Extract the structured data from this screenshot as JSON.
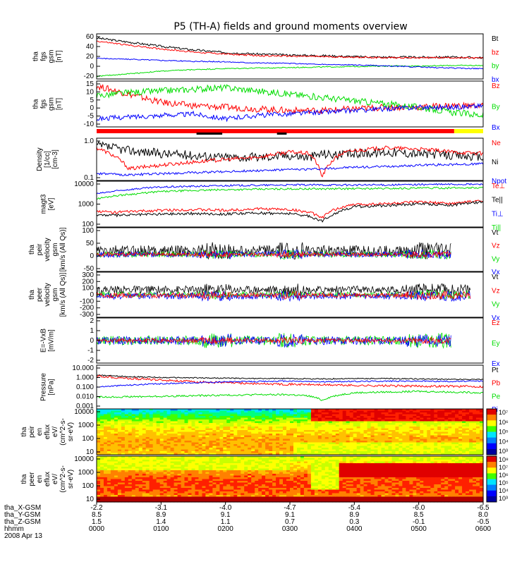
{
  "title": "P5 (TH-A) fields and ground moments overview",
  "colors": {
    "black": "#000000",
    "red": "#ff0000",
    "green": "#00dd00",
    "blue": "#0000ff",
    "yellow": "#ffff00"
  },
  "chart_data": [
    {
      "id": "fgs",
      "type": "line",
      "ylabel": [
        "tha",
        "fgs",
        "gsm",
        "[nT]"
      ],
      "ticks": [
        "60",
        "40",
        "20",
        "0",
        "-20"
      ],
      "ylim": [
        -25,
        62
      ],
      "legend": [
        {
          "name": "Bt",
          "color": "black"
        },
        {
          "name": "bz",
          "color": "red"
        },
        {
          "name": "by",
          "color": "green"
        },
        {
          "name": "bx",
          "color": "blue"
        }
      ],
      "series": [
        {
          "name": "Bt",
          "color": "black",
          "x": [
            0,
            0.5,
            1,
            1.5,
            2,
            2.5,
            3,
            3.5,
            4,
            4.5,
            5,
            5.5,
            6
          ],
          "y": [
            54,
            46,
            38,
            31,
            26,
            23,
            21,
            20,
            18,
            17,
            17,
            17,
            16
          ],
          "noise": 2
        },
        {
          "name": "bz",
          "color": "red",
          "x": [
            0,
            0.5,
            1,
            1.5,
            2,
            2.5,
            3,
            3.5,
            4,
            4.5,
            5,
            5.5,
            6
          ],
          "y": [
            48,
            40,
            33,
            27,
            23,
            20,
            19,
            18,
            17,
            16,
            16,
            16,
            15
          ],
          "noise": 1.5
        },
        {
          "name": "by",
          "color": "green",
          "x": [
            0,
            0.5,
            1,
            1.5,
            2,
            2.5,
            3,
            3.5,
            4,
            4.5,
            5,
            5.5,
            6
          ],
          "y": [
            -20,
            -15,
            -10,
            -7,
            -5,
            -4,
            -3,
            -2,
            -1,
            0,
            0,
            1,
            1
          ],
          "noise": 1
        },
        {
          "name": "bx",
          "color": "blue",
          "x": [
            0,
            0.5,
            1,
            1.5,
            2,
            2.5,
            3,
            3.5,
            4,
            4.5,
            5,
            5.5,
            6
          ],
          "y": [
            15,
            13,
            11,
            9,
            8,
            6,
            5,
            3,
            2,
            0,
            -2,
            -4,
            -5
          ],
          "noise": 1
        }
      ]
    },
    {
      "id": "fgs_dsl",
      "type": "line",
      "ylabel": [
        "tha",
        "fgs",
        "gsm",
        "[nT]"
      ],
      "ticks": [
        "15",
        "10",
        "5",
        "0",
        "-5",
        "-10"
      ],
      "ylim": [
        -12,
        16
      ],
      "legend": [
        {
          "name": "Bz",
          "color": "red"
        },
        {
          "name": "By",
          "color": "green"
        },
        {
          "name": "Bx",
          "color": "blue"
        }
      ],
      "series": [
        {
          "name": "Bz",
          "color": "red",
          "x": [
            0,
            0.5,
            1,
            1.5,
            2,
            2.5,
            3,
            3.5,
            4,
            4.5,
            5,
            5.5,
            6
          ],
          "y": [
            13,
            8,
            3,
            1,
            0,
            -1,
            -2,
            -2,
            -1,
            0,
            0,
            1,
            1
          ],
          "noise": 2
        },
        {
          "name": "By",
          "color": "green",
          "x": [
            0,
            0.5,
            1,
            1.5,
            2,
            2.5,
            3,
            3.5,
            4,
            4.5,
            5,
            5.5,
            6
          ],
          "y": [
            7,
            9,
            10,
            11,
            12,
            10,
            8,
            6,
            4,
            2,
            0,
            -3,
            -5
          ],
          "noise": 2
        },
        {
          "name": "Bx",
          "color": "blue",
          "x": [
            0,
            0.5,
            1,
            1.5,
            2,
            2.5,
            3,
            3.5,
            4,
            4.5,
            5,
            5.5,
            6
          ],
          "y": [
            -7,
            -6,
            -5,
            -4,
            -7,
            -5,
            -4,
            -3,
            -2,
            -1,
            0,
            0,
            1
          ],
          "noise": 1.5
        }
      ]
    },
    {
      "id": "density",
      "type": "line",
      "scale": "log",
      "ylabel": [
        "Density",
        "[1/cc]",
        "[cm-3]"
      ],
      "ticks": [
        "1.0",
        "0.1"
      ],
      "ylim": [
        0.1,
        1.25
      ],
      "legend": [
        {
          "name": "Ne",
          "color": "red"
        },
        {
          "name": "Ni",
          "color": "black"
        },
        {
          "name": "Npot",
          "color": "blue"
        }
      ],
      "series": [
        {
          "name": "Ni",
          "color": "black",
          "x": [
            0,
            0.5,
            1,
            1.5,
            2,
            2.5,
            3,
            3.3,
            3.5,
            3.8,
            4,
            4.5,
            5,
            5.5,
            6
          ],
          "y": [
            0.8,
            0.6,
            0.5,
            0.45,
            0.4,
            0.4,
            0.45,
            0.4,
            0.5,
            0.45,
            0.5,
            0.55,
            0.5,
            0.45,
            0.4
          ],
          "noise": 0.12
        },
        {
          "name": "Ne",
          "color": "red",
          "x": [
            0,
            0.5,
            1,
            1.5,
            2,
            2.5,
            3,
            3.3,
            3.5,
            3.8,
            4,
            4.5,
            5,
            5.5,
            6
          ],
          "y": [
            0.7,
            0.2,
            0.25,
            0.3,
            0.35,
            0.4,
            0.55,
            0.5,
            0.12,
            0.5,
            0.6,
            0.7,
            0.65,
            0.55,
            0.5
          ],
          "noise": 0.05
        },
        {
          "name": "Npot",
          "color": "blue",
          "x": [
            0,
            0.5,
            1,
            1.5,
            2,
            2.5,
            3,
            3.5,
            4,
            4.5,
            5,
            5.5,
            6
          ],
          "y": [
            0.15,
            0.14,
            0.15,
            0.16,
            0.17,
            0.18,
            0.19,
            0.2,
            0.22,
            0.23,
            0.25,
            0.26,
            0.27
          ],
          "noise": 0.03
        }
      ]
    },
    {
      "id": "temp",
      "type": "line",
      "scale": "log",
      "ylabel": [
        "magt3",
        "[eV]"
      ],
      "ticks": [
        "10000",
        "1000",
        "100"
      ],
      "ylim": [
        100,
        11000
      ],
      "legend": [
        {
          "name": "Te⊥",
          "color": "red"
        },
        {
          "name": "Te||",
          "color": "black"
        },
        {
          "name": "Ti⊥",
          "color": "blue"
        },
        {
          "name": "Ti||",
          "color": "green"
        }
      ],
      "series": [
        {
          "name": "Ti⊥",
          "color": "blue",
          "x": [
            0,
            0.3,
            0.6,
            1,
            1.5,
            2,
            2.5,
            3,
            3.5,
            4,
            4.5,
            5,
            5.5,
            6
          ],
          "y": [
            3000,
            4000,
            5000,
            6000,
            6500,
            7000,
            7200,
            7500,
            7500,
            7400,
            7500,
            7800,
            8000,
            8000
          ],
          "noise": 0.04
        },
        {
          "name": "Ti||",
          "color": "green",
          "x": [
            0,
            0.3,
            0.6,
            1,
            1.5,
            2,
            2.5,
            3,
            3.5,
            4,
            4.5,
            5,
            5.5,
            6
          ],
          "y": [
            1800,
            2500,
            3000,
            3800,
            4200,
            4600,
            4800,
            5000,
            5000,
            5100,
            5200,
            5400,
            5500,
            5600
          ],
          "noise": 0.04
        },
        {
          "name": "Te⊥",
          "color": "red",
          "x": [
            0,
            0.3,
            0.6,
            1,
            1.5,
            2,
            2.5,
            3,
            3.3,
            3.5,
            3.7,
            4,
            4.5,
            5,
            5.5,
            6
          ],
          "y": [
            500,
            450,
            500,
            550,
            600,
            550,
            650,
            600,
            450,
            250,
            600,
            1000,
            1100,
            1300,
            1100,
            1500
          ],
          "noise": 0.06
        },
        {
          "name": "Te||",
          "color": "black",
          "x": [
            0,
            0.3,
            0.6,
            1,
            1.5,
            2,
            2.5,
            3,
            3.3,
            3.5,
            3.7,
            4,
            4.5,
            5,
            5.5,
            6
          ],
          "y": [
            350,
            330,
            350,
            380,
            400,
            380,
            420,
            400,
            300,
            180,
            400,
            800,
            900,
            1100,
            950,
            1300
          ],
          "noise": 0.06
        }
      ]
    },
    {
      "id": "peir",
      "type": "noise",
      "ylabel": [
        "tha",
        "peir",
        "velocity",
        "gsm",
        "[km/s (All Qs)]"
      ],
      "ticks": [
        "100",
        "50",
        "0",
        "-50"
      ],
      "ylim": [
        -70,
        110
      ],
      "xmax": 5.5,
      "legend": [
        {
          "name": "Vt",
          "color": "black"
        },
        {
          "name": "Vz",
          "color": "red"
        },
        {
          "name": "Vy",
          "color": "green"
        },
        {
          "name": "Vx",
          "color": "blue"
        }
      ],
      "series": [
        {
          "name": "Vt",
          "color": "black",
          "base": 15,
          "amp": 22,
          "offset": 0
        },
        {
          "name": "Vy",
          "color": "green",
          "base": 0,
          "amp": 12,
          "offset": 0
        },
        {
          "name": "Vx",
          "color": "blue",
          "base": 0,
          "amp": 12,
          "offset": 0
        },
        {
          "name": "Vz",
          "color": "red",
          "base": 0,
          "amp": 8,
          "offset": 0
        }
      ]
    },
    {
      "id": "peer",
      "type": "noise",
      "ylabel": [
        "tha",
        "peer",
        "velocity",
        "gsm",
        "[km/s (All Qs)]"
      ],
      "ticks": [
        "300",
        "200",
        "100",
        "0",
        "-100",
        "-200",
        "-300"
      ],
      "ylim": [
        -320,
        320
      ],
      "xmax": 5.8,
      "legend": [
        {
          "name": "Vt",
          "color": "black"
        },
        {
          "name": "Vz",
          "color": "red"
        },
        {
          "name": "Vy",
          "color": "green"
        },
        {
          "name": "Vx",
          "color": "blue"
        }
      ],
      "series": [
        {
          "name": "Vt",
          "color": "black",
          "base": 70,
          "amp": 55,
          "offset": 0
        },
        {
          "name": "Vy",
          "color": "green",
          "base": 0,
          "amp": 40,
          "offset": 0
        },
        {
          "name": "Vx",
          "color": "blue",
          "base": -20,
          "amp": 45,
          "offset": 0
        },
        {
          "name": "Vz",
          "color": "red",
          "base": -10,
          "amp": 35,
          "offset": 0
        }
      ]
    },
    {
      "id": "efield",
      "type": "noise",
      "ylabel": [
        "E=-VxB",
        "[mV/m]"
      ],
      "ticks": [
        "2",
        "1",
        "0",
        "-1",
        "-2"
      ],
      "ylim": [
        -2.2,
        2.2
      ],
      "xmax": 5.5,
      "legend": [
        {
          "name": "Ez",
          "color": "red"
        },
        {
          "name": "Ey",
          "color": "green"
        },
        {
          "name": "Ex",
          "color": "blue"
        }
      ],
      "series": [
        {
          "name": "Ey",
          "color": "green",
          "base": 0,
          "amp": 0.45,
          "offset": 0
        },
        {
          "name": "Ex",
          "color": "blue",
          "base": 0,
          "amp": 0.4,
          "offset": 0
        },
        {
          "name": "Ez",
          "color": "red",
          "base": 0,
          "amp": 0.2,
          "offset": 0
        }
      ]
    },
    {
      "id": "pressure",
      "type": "line",
      "scale": "log",
      "ylabel": [
        "Pressure",
        "[nPa]"
      ],
      "ticks": [
        "10.000",
        "1.000",
        "0.100",
        "0.010",
        "0.001"
      ],
      "ylim": [
        0.001,
        10
      ],
      "legend": [
        {
          "name": "Pt",
          "color": "black"
        },
        {
          "name": "Pb",
          "color": "red"
        },
        {
          "name": "Pe",
          "color": "green"
        },
        {
          "name": "Pi",
          "color": "blue"
        }
      ],
      "series": [
        {
          "name": "Pt",
          "color": "black",
          "x": [
            0,
            0.5,
            1,
            1.5,
            2,
            2.5,
            3,
            3.5,
            4,
            4.5,
            5,
            5.5,
            6
          ],
          "y": [
            1.2,
            0.9,
            0.75,
            0.7,
            0.65,
            0.6,
            0.6,
            0.55,
            0.6,
            0.6,
            0.55,
            0.5,
            0.5
          ],
          "noise": 0.05
        },
        {
          "name": "Pb",
          "color": "red",
          "x": [
            0,
            0.5,
            1,
            1.5,
            2,
            2.5,
            3,
            3.5,
            4,
            4.5,
            5,
            5.5,
            6
          ],
          "y": [
            1.0,
            0.6,
            0.45,
            0.3,
            0.25,
            0.2,
            0.18,
            0.16,
            0.14,
            0.13,
            0.12,
            0.12,
            0.11
          ],
          "noise": 0.1
        },
        {
          "name": "Pi",
          "color": "blue",
          "x": [
            0,
            0.5,
            1,
            1.5,
            2,
            2.5,
            3,
            3.5,
            4,
            4.5,
            5,
            5.5,
            6
          ],
          "y": [
            0.1,
            0.15,
            0.2,
            0.25,
            0.3,
            0.32,
            0.35,
            0.3,
            0.33,
            0.35,
            0.35,
            0.33,
            0.35
          ],
          "noise": 0.06
        },
        {
          "name": "Pe",
          "color": "green",
          "x": [
            0,
            0.5,
            1,
            1.5,
            2,
            2.5,
            3,
            3.3,
            3.5,
            4,
            4.5,
            5,
            5.5,
            6
          ],
          "y": [
            0.012,
            0.013,
            0.014,
            0.016,
            0.018,
            0.02,
            0.02,
            0.015,
            0.006,
            0.03,
            0.035,
            0.04,
            0.035,
            0.03
          ],
          "noise": 0.08
        }
      ]
    },
    {
      "id": "peir_spec",
      "type": "heatmap",
      "ylabel": [
        "tha",
        "peir",
        "en",
        "eflux",
        "eV/",
        "(cm^2-s-",
        "sr-eV)"
      ],
      "ticks": [
        "10000",
        "1000",
        "100",
        "10"
      ],
      "colorbar": [
        "10⁷",
        "10⁶",
        "10⁵",
        "10⁴",
        "10³"
      ]
    },
    {
      "id": "peer_spec",
      "type": "heatmap",
      "ylabel": [
        "tha",
        "peer",
        "en",
        "eflux",
        "eV/",
        "(cm^2-s-",
        "sr-eV)"
      ],
      "ticks": [
        "10000",
        "1000",
        "100",
        "10"
      ],
      "colorbar": [
        "10⁸",
        "10⁷",
        "10⁶",
        "10⁵",
        "10⁴",
        "10³"
      ]
    }
  ],
  "axis": {
    "row_labels": [
      "tha_X-GSM",
      "tha_Y-GSM",
      "tha_Z-GSM",
      "hhmm",
      "2008 Apr 13"
    ],
    "columns": [
      {
        "x": "-2.2",
        "y": "8.5",
        "z": "1.5",
        "t": "0000"
      },
      {
        "x": "-3.1",
        "y": "8.9",
        "z": "1.4",
        "t": "0100"
      },
      {
        "x": "-4.0",
        "y": "9.1",
        "z": "1.1",
        "t": "0200"
      },
      {
        "x": "-4.7",
        "y": "9.1",
        "z": "0.7",
        "t": "0300"
      },
      {
        "x": "-5.4",
        "y": "8.9",
        "z": "0.3",
        "t": "0400"
      },
      {
        "x": "-6.0",
        "y": "8.5",
        "z": "-0.1",
        "t": "0500"
      },
      {
        "x": "-6.5",
        "y": "8.0",
        "z": "-0.5",
        "t": "0600"
      }
    ]
  },
  "mode_bar": {
    "segments": [
      {
        "from": 0,
        "to": 5.55,
        "color": "red"
      },
      {
        "from": 5.55,
        "to": 6,
        "color": "yellow"
      }
    ],
    "marks": [
      {
        "from": 1.55,
        "to": 1.95
      },
      {
        "from": 2.8,
        "to": 2.95
      }
    ]
  }
}
